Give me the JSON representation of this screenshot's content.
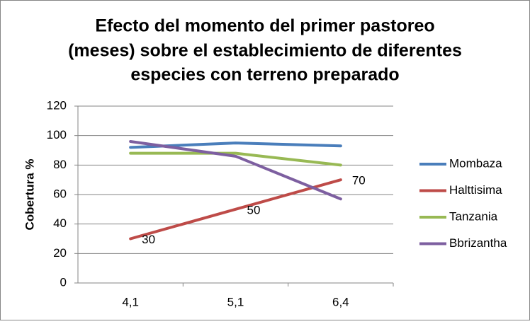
{
  "chart_data": {
    "type": "line",
    "title": [
      "Efecto del momento del primer pastoreo",
      "(meses) sobre el establecimiento de diferentes",
      "especies con terreno preparado"
    ],
    "y_label": "Cobertura %",
    "categories": [
      "4,1",
      "5,1",
      "6,4"
    ],
    "series": [
      {
        "name": "Mombaza",
        "color": "#4a7ebb",
        "values": [
          92,
          95,
          93
        ]
      },
      {
        "name": "Halttisima",
        "color": "#be4b48",
        "values": [
          30,
          50,
          70
        ],
        "data_labels": true
      },
      {
        "name": "Tanzania",
        "color": "#98b954",
        "values": [
          88,
          88,
          80
        ]
      },
      {
        "name": "Bbrizantha",
        "color": "#7d5fa0",
        "values": [
          96,
          86,
          57
        ]
      }
    ],
    "ylim": [
      0,
      120
    ],
    "yticks": [
      0,
      20,
      40,
      60,
      80,
      100,
      120
    ],
    "grid": true,
    "legend": "right"
  }
}
